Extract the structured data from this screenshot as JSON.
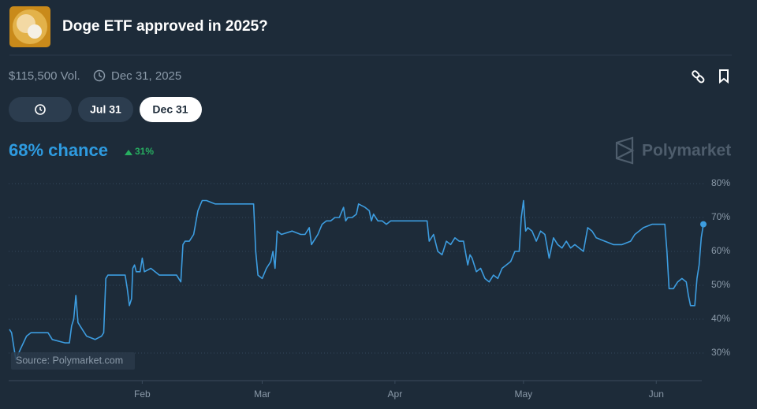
{
  "header": {
    "title": "Doge ETF approved in 2025?"
  },
  "meta": {
    "volume": "$115,500 Vol.",
    "end_date": "Dec 31, 2025"
  },
  "tabs": [
    "Jul 31",
    "Dec 31"
  ],
  "chance": {
    "text": "68% chance",
    "change": "31%"
  },
  "brand": "Polymarket",
  "source": "Source: Polymarket.com",
  "chart_data": {
    "type": "line",
    "color": "#3d9de0",
    "grid": true,
    "x": [
      0,
      0.5,
      1.5,
      2.5,
      4,
      5,
      9,
      10,
      13,
      14,
      14.5,
      15,
      15.5,
      16,
      17,
      18,
      20,
      21.5,
      22,
      22.5,
      23,
      26,
      27,
      27.5,
      28,
      28.5,
      28.8,
      29.2,
      29.6,
      30.5,
      31,
      31.5,
      33,
      35,
      38,
      39,
      40,
      40.5,
      41,
      42,
      43,
      44,
      45,
      46,
      48,
      52,
      55,
      57,
      57.5,
      58,
      59,
      60,
      61,
      61.5,
      62,
      62.5,
      63.5,
      66,
      68,
      69,
      70,
      70.5,
      71,
      72,
      73,
      74,
      75,
      76,
      77,
      78,
      78.5,
      79,
      80,
      81,
      81.5,
      83,
      84,
      84.5,
      85,
      86,
      87,
      88,
      89,
      90,
      97.5,
      98,
      99,
      100,
      101,
      102,
      103,
      104,
      105,
      106,
      107,
      107.5,
      108,
      109,
      110,
      111,
      112,
      113,
      114,
      115,
      116,
      117,
      118,
      119,
      119.5,
      120,
      120.5,
      121,
      122,
      123,
      124,
      125,
      126,
      127,
      128,
      129,
      130,
      131,
      132,
      133,
      134,
      135,
      136,
      137,
      139,
      141,
      143,
      145,
      146,
      148,
      150,
      152,
      153,
      153.5,
      154,
      155,
      156,
      157,
      158,
      158.5,
      159,
      160,
      160.5,
      161,
      161.5,
      162
    ],
    "values": [
      37,
      36,
      28,
      31,
      35,
      36,
      36,
      34,
      33,
      33,
      38,
      40,
      47,
      39,
      37,
      35,
      34,
      35,
      36,
      52,
      53,
      53,
      53,
      49,
      44,
      46,
      55,
      56,
      54,
      54,
      58,
      54,
      55,
      53,
      53,
      53,
      51,
      62,
      63,
      63,
      65,
      72,
      75,
      75,
      74,
      74,
      74,
      74,
      60,
      53,
      52,
      55,
      57,
      60,
      55,
      66,
      65,
      66,
      65,
      65,
      67,
      62,
      63,
      65,
      68,
      69,
      69,
      70,
      70,
      73,
      69,
      70,
      70,
      71,
      74,
      73,
      72,
      69,
      71,
      69,
      69,
      68,
      69,
      69,
      69,
      63,
      65,
      60,
      59,
      63,
      62,
      64,
      63,
      63,
      56,
      59,
      58,
      54,
      55,
      52,
      51,
      53,
      52,
      55,
      56,
      57,
      60,
      60,
      70,
      75,
      66,
      67,
      66,
      63,
      66,
      65,
      58,
      64,
      62,
      61,
      63,
      61,
      62,
      61,
      60,
      67,
      66,
      64,
      63,
      62,
      62,
      63,
      65,
      67,
      68,
      68,
      68,
      60,
      49,
      49,
      51,
      52,
      51,
      47,
      44,
      44,
      52,
      56,
      64,
      68
    ],
    "xlim": [
      0,
      162
    ],
    "xticks": [
      {
        "value": 31,
        "label": "Feb"
      },
      {
        "value": 59,
        "label": "Mar"
      },
      {
        "value": 90,
        "label": "Apr"
      },
      {
        "value": 120,
        "label": "May"
      },
      {
        "value": 151,
        "label": "Jun"
      }
    ],
    "ylim": [
      22,
      82
    ],
    "yticks": [
      {
        "value": 30,
        "label": "30%"
      },
      {
        "value": 40,
        "label": "40%"
      },
      {
        "value": 50,
        "label": "50%"
      },
      {
        "value": 60,
        "label": "60%"
      },
      {
        "value": 70,
        "label": "70%"
      },
      {
        "value": 80,
        "label": "80%"
      }
    ]
  }
}
